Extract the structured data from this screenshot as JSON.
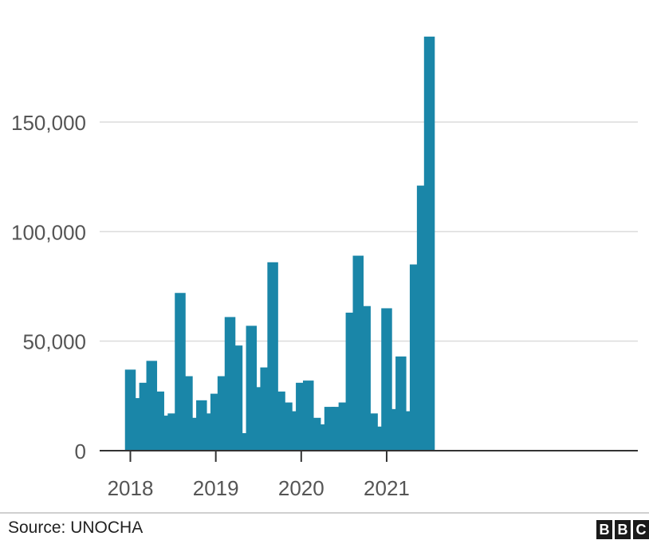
{
  "chart_data": {
    "type": "bar",
    "title": "",
    "xlabel": "",
    "ylabel": "",
    "ylim": [
      0,
      190000
    ],
    "y_ticks": [
      0,
      50000,
      100000,
      150000
    ],
    "y_tick_labels": [
      "0",
      "50,000",
      "100,000",
      "150,000"
    ],
    "x_ticks": [
      {
        "label": "2018",
        "index": 0
      },
      {
        "label": "2019",
        "index": 12
      },
      {
        "label": "2020",
        "index": 24
      },
      {
        "label": "2021",
        "index": 36
      }
    ],
    "grid": "horizontal",
    "color": "#1a86a8",
    "values": [
      37000,
      24000,
      31000,
      41000,
      27000,
      16000,
      17000,
      72000,
      34000,
      15000,
      23000,
      17000,
      26000,
      34000,
      61000,
      48000,
      8000,
      57000,
      29000,
      38000,
      86000,
      27000,
      22000,
      18000,
      31000,
      32000,
      15000,
      12000,
      20000,
      20000,
      22000,
      63000,
      89000,
      66000,
      17000,
      11000,
      65000,
      19000,
      43000,
      18000,
      85000,
      121000,
      189000
    ]
  },
  "footer": {
    "source": "Source: UNOCHA",
    "logo_letters": [
      "B",
      "B",
      "C"
    ]
  }
}
